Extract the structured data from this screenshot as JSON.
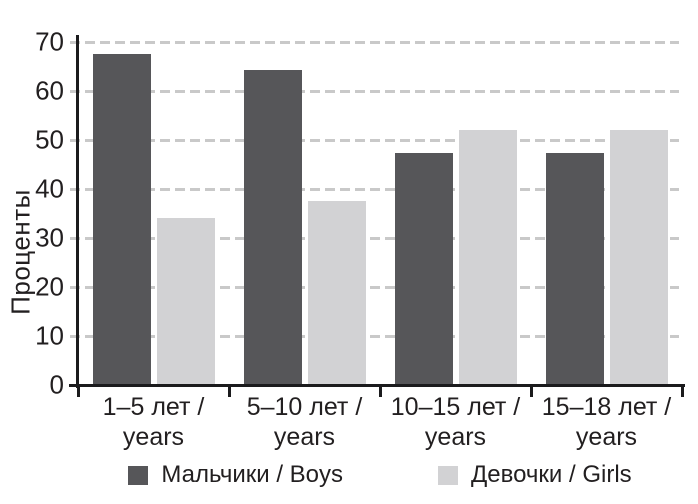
{
  "chart_data": {
    "type": "bar",
    "title": "",
    "ylabel": "Проценты",
    "ylim": [
      0,
      70
    ],
    "yticks": [
      0,
      10,
      20,
      30,
      40,
      50,
      60,
      70
    ],
    "grid": "horizontal-dashed",
    "legend_position": "bottom",
    "categories": [
      [
        "1–5 лет /",
        "years"
      ],
      [
        "5–10 лет /",
        "years"
      ],
      [
        "10–15 лет /",
        "years"
      ],
      [
        "15–18 лет /",
        "years"
      ]
    ],
    "series": [
      {
        "key": "boys",
        "name": "Мальчики / Boys",
        "color": "#565659",
        "values": [
          67.5,
          64.3,
          47.3,
          47.3
        ]
      },
      {
        "key": "girls",
        "name": "Девочки / Girls",
        "color": "#d2d2d4",
        "values": [
          34,
          37.5,
          52,
          52
        ]
      }
    ]
  },
  "colors": {
    "axis": "#1b1b1d",
    "text": "#221f20",
    "gridline": "#c9c9c9",
    "background": "#ffffff"
  }
}
